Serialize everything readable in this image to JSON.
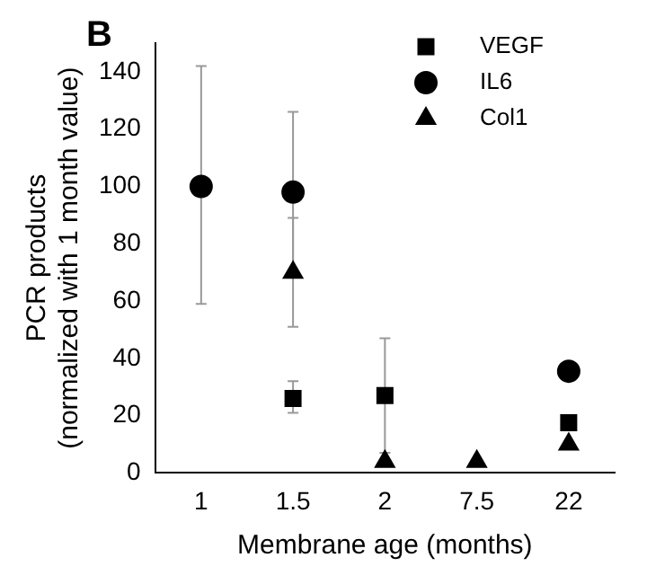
{
  "chart_data": {
    "type": "scatter",
    "annotations": [
      "B"
    ],
    "xlabel": "Membrane age (months)",
    "ylabel": "PCR products\n(normalized with 1 month value)",
    "categories": [
      "1",
      "1.5",
      "2",
      "7.5",
      "22"
    ],
    "series": [
      {
        "name": "VEGF",
        "color": "#000000",
        "marker": "square",
        "values": [
          null,
          26,
          27,
          null,
          17.5
        ],
        "errors": [
          null,
          [
            21,
            32
          ],
          [
            7,
            47
          ],
          null,
          null
        ]
      },
      {
        "name": "IL6",
        "color": "#000000",
        "marker": "circle",
        "values": [
          100,
          98,
          null,
          null,
          35.5
        ],
        "errors": [
          [
            59,
            142
          ],
          [
            70,
            126
          ],
          null,
          null,
          null
        ]
      },
      {
        "name": "Col1",
        "color": "#000000",
        "marker": "triangle",
        "values": [
          null,
          70,
          4,
          4,
          10
        ],
        "errors": [
          null,
          [
            51,
            89
          ],
          null,
          null,
          null
        ]
      }
    ],
    "ylim": [
      0,
      150
    ],
    "yticks": [
      0,
      20,
      40,
      60,
      80,
      100,
      120,
      140
    ],
    "grid": false,
    "legend": "top right"
  }
}
